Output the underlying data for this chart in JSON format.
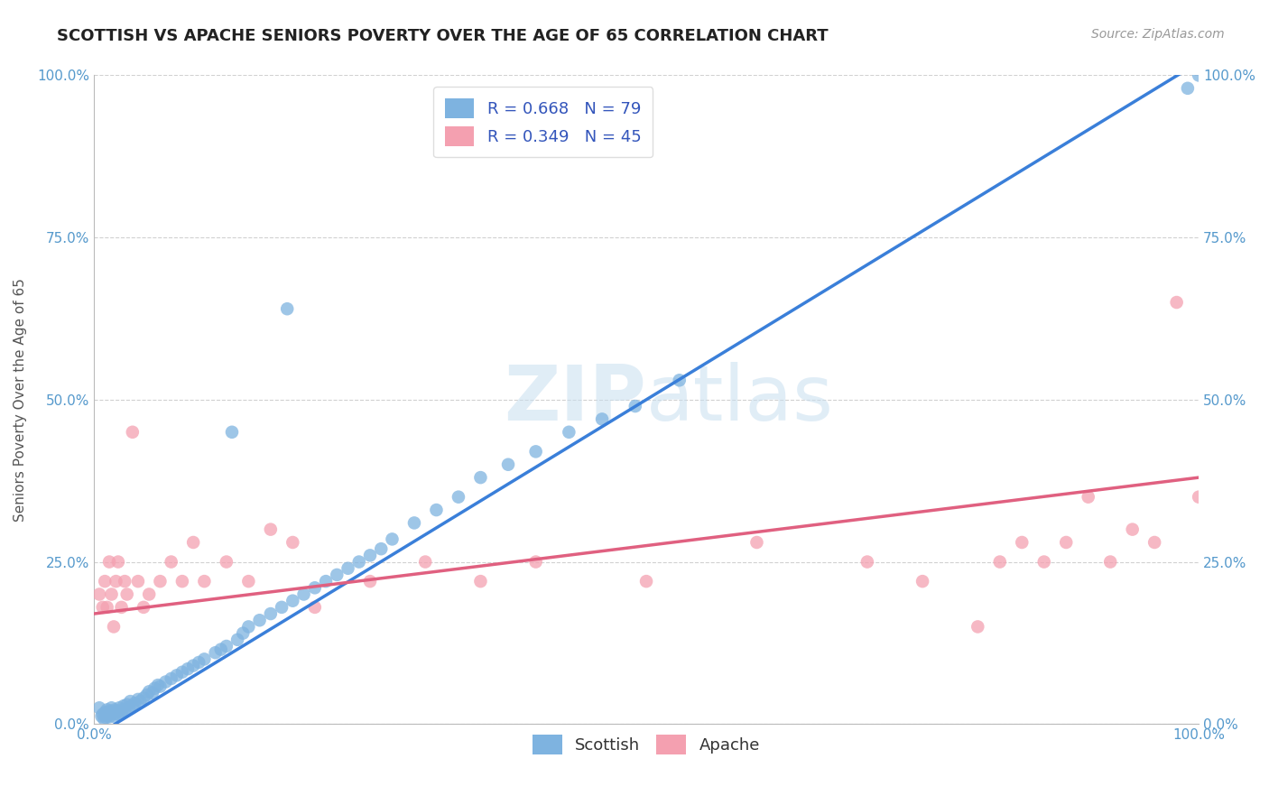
{
  "title": "SCOTTISH VS APACHE SENIORS POVERTY OVER THE AGE OF 65 CORRELATION CHART",
  "source": "Source: ZipAtlas.com",
  "ylabel": "Seniors Poverty Over the Age of 65",
  "xlim": [
    0,
    1
  ],
  "ylim": [
    0,
    1
  ],
  "xtick_labels": [
    "0.0%",
    "100.0%"
  ],
  "ytick_labels": [
    "0.0%",
    "25.0%",
    "50.0%",
    "75.0%",
    "100.0%"
  ],
  "ytick_values": [
    0.0,
    0.25,
    0.5,
    0.75,
    1.0
  ],
  "watermark_text": "ZIPAtlas",
  "scottish_color": "#7eb3e0",
  "apache_color": "#f4a0b0",
  "scottish_line_color": "#3a7fd9",
  "apache_line_color": "#e06080",
  "scottish_R": 0.668,
  "scottish_N": 79,
  "apache_R": 0.349,
  "apache_N": 45,
  "legend_R_color": "#3355bb",
  "background_color": "#ffffff",
  "grid_color": "#cccccc",
  "title_fontsize": 13,
  "label_fontsize": 11,
  "tick_fontsize": 11,
  "legend_fontsize": 13,
  "source_fontsize": 10,
  "scottish_x": [
    0.005,
    0.007,
    0.008,
    0.009,
    0.01,
    0.011,
    0.012,
    0.012,
    0.013,
    0.014,
    0.015,
    0.015,
    0.016,
    0.017,
    0.018,
    0.019,
    0.02,
    0.021,
    0.022,
    0.023,
    0.025,
    0.026,
    0.027,
    0.028,
    0.03,
    0.032,
    0.033,
    0.035,
    0.037,
    0.04,
    0.042,
    0.045,
    0.048,
    0.05,
    0.053,
    0.055,
    0.058,
    0.06,
    0.065,
    0.07,
    0.075,
    0.08,
    0.085,
    0.09,
    0.095,
    0.1,
    0.11,
    0.115,
    0.12,
    0.125,
    0.13,
    0.135,
    0.14,
    0.15,
    0.16,
    0.17,
    0.175,
    0.18,
    0.19,
    0.2,
    0.21,
    0.22,
    0.23,
    0.24,
    0.25,
    0.26,
    0.27,
    0.29,
    0.31,
    0.33,
    0.35,
    0.375,
    0.4,
    0.43,
    0.46,
    0.49,
    0.53,
    0.99,
    1.0
  ],
  "scottish_y": [
    0.025,
    0.012,
    0.015,
    0.008,
    0.018,
    0.01,
    0.022,
    0.013,
    0.017,
    0.011,
    0.02,
    0.015,
    0.025,
    0.018,
    0.012,
    0.022,
    0.016,
    0.02,
    0.015,
    0.025,
    0.018,
    0.022,
    0.028,
    0.02,
    0.03,
    0.025,
    0.035,
    0.028,
    0.032,
    0.038,
    0.035,
    0.04,
    0.045,
    0.05,
    0.048,
    0.055,
    0.06,
    0.058,
    0.065,
    0.07,
    0.075,
    0.08,
    0.085,
    0.09,
    0.095,
    0.1,
    0.11,
    0.115,
    0.12,
    0.45,
    0.13,
    0.14,
    0.15,
    0.16,
    0.17,
    0.18,
    0.64,
    0.19,
    0.2,
    0.21,
    0.22,
    0.23,
    0.24,
    0.25,
    0.26,
    0.27,
    0.285,
    0.31,
    0.33,
    0.35,
    0.38,
    0.4,
    0.42,
    0.45,
    0.47,
    0.49,
    0.53,
    0.98,
    1.0
  ],
  "apache_x": [
    0.005,
    0.008,
    0.01,
    0.012,
    0.014,
    0.016,
    0.018,
    0.02,
    0.022,
    0.025,
    0.028,
    0.03,
    0.035,
    0.04,
    0.045,
    0.05,
    0.06,
    0.07,
    0.08,
    0.09,
    0.1,
    0.12,
    0.14,
    0.16,
    0.18,
    0.2,
    0.25,
    0.3,
    0.35,
    0.4,
    0.5,
    0.6,
    0.7,
    0.75,
    0.8,
    0.82,
    0.84,
    0.86,
    0.88,
    0.9,
    0.92,
    0.94,
    0.96,
    0.98,
    1.0
  ],
  "apache_y": [
    0.2,
    0.18,
    0.22,
    0.18,
    0.25,
    0.2,
    0.15,
    0.22,
    0.25,
    0.18,
    0.22,
    0.2,
    0.45,
    0.22,
    0.18,
    0.2,
    0.22,
    0.25,
    0.22,
    0.28,
    0.22,
    0.25,
    0.22,
    0.3,
    0.28,
    0.18,
    0.22,
    0.25,
    0.22,
    0.25,
    0.22,
    0.28,
    0.25,
    0.22,
    0.15,
    0.25,
    0.28,
    0.25,
    0.28,
    0.35,
    0.25,
    0.3,
    0.28,
    0.65,
    0.35
  ]
}
